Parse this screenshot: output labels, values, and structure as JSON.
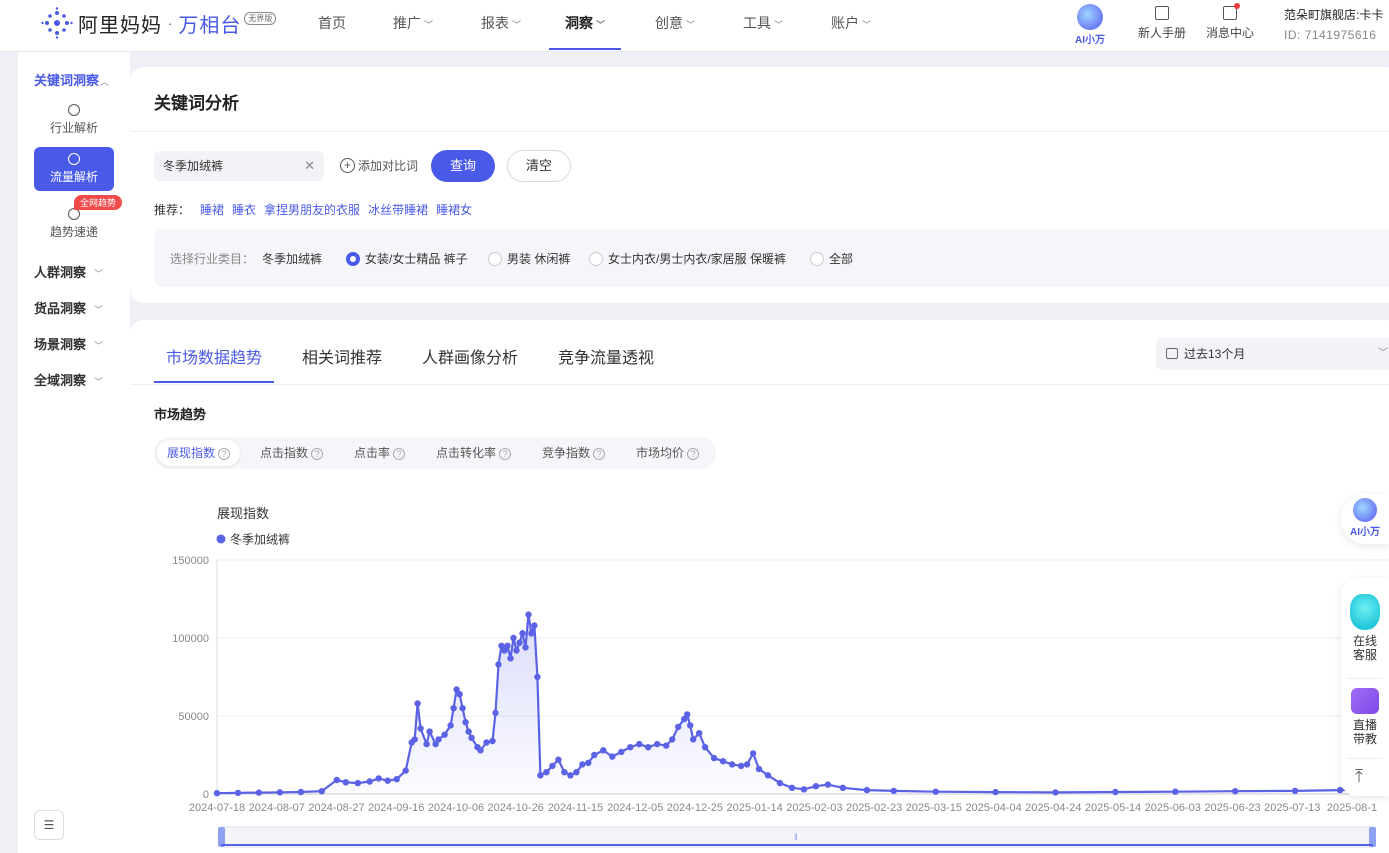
{
  "brand": {
    "name": "阿里妈妈",
    "dot": "·",
    "product": "万相台",
    "badge": "无界版"
  },
  "nav": [
    {
      "label": "首页",
      "dropdown": false,
      "active": false
    },
    {
      "label": "推广",
      "dropdown": true,
      "active": false
    },
    {
      "label": "报表",
      "dropdown": true,
      "active": false
    },
    {
      "label": "洞察",
      "dropdown": true,
      "active": true
    },
    {
      "label": "创意",
      "dropdown": true,
      "active": false
    },
    {
      "label": "工具",
      "dropdown": true,
      "active": false
    },
    {
      "label": "账户",
      "dropdown": true,
      "active": false
    }
  ],
  "header": {
    "ai_label": "AI小万",
    "manual_label": "新人手册",
    "messages_label": "消息中心",
    "shop_name": "范朵町旗舰店:卡卡",
    "shop_id": "ID: 7141975616"
  },
  "sidebar": {
    "keyword_section": "关键词洞察",
    "items": [
      {
        "label": "行业解析",
        "active": false
      },
      {
        "label": "流量解析",
        "active": true
      },
      {
        "label": "趋势速递",
        "active": false
      }
    ],
    "badge": "全网趋势",
    "sections": [
      "人群洞察",
      "货品洞察",
      "场景洞察",
      "全域洞察"
    ],
    "collapse_icon": "collapse-icon"
  },
  "keyword_panel": {
    "title": "关键词分析",
    "keyword_value": "冬季加绒裤",
    "add_compare_label": "添加对比词",
    "query_label": "查询",
    "clear_label": "清空",
    "rec_label": "推荐：",
    "recommendations": [
      "睡裙",
      "睡衣",
      "拿捏男朋友的衣服",
      "冰丝带睡裙",
      "睡裙女"
    ],
    "industry_label": "选择行业类目：",
    "industry_keyword": "冬季加绒裤",
    "industry_options": [
      {
        "label": "女装/女士精品 裤子",
        "selected": true
      },
      {
        "label": "男装 休闲裤",
        "selected": false
      },
      {
        "label": "女士内衣/男士内衣/家居服 保暖裤",
        "selected": false
      },
      {
        "label": "全部",
        "selected": false
      }
    ]
  },
  "analysis_panel": {
    "tabs": [
      {
        "label": "市场数据趋势",
        "active": true
      },
      {
        "label": "相关词推荐",
        "active": false
      },
      {
        "label": "人群画像分析",
        "active": false
      },
      {
        "label": "竞争流量透视",
        "active": false
      }
    ],
    "range_label": "过去13个月",
    "section_title": "市场趋势",
    "metrics": [
      {
        "label": "展现指数",
        "active": true
      },
      {
        "label": "点击指数",
        "active": false
      },
      {
        "label": "点击率",
        "active": false
      },
      {
        "label": "点击转化率",
        "active": false
      },
      {
        "label": "竞争指数",
        "active": false
      },
      {
        "label": "市场均价",
        "active": false
      }
    ]
  },
  "chart_data": {
    "type": "line",
    "title": "展现指数",
    "series": [
      {
        "name": "冬季加绒裤",
        "color": "#5b62e6"
      }
    ],
    "ylim": [
      0,
      150000
    ],
    "y_ticks": [
      0,
      50000,
      100000,
      150000
    ],
    "x_ticks": [
      "2024-07-18",
      "2024-08-07",
      "2024-08-27",
      "2024-09-16",
      "2024-10-06",
      "2024-10-26",
      "2024-11-15",
      "2024-12-05",
      "2024-12-25",
      "2025-01-14",
      "2025-02-03",
      "2025-02-23",
      "2025-03-15",
      "2025-04-04",
      "2025-04-24",
      "2025-05-14",
      "2025-06-03",
      "2025-06-23",
      "2025-07-13",
      "2025-08-1"
    ],
    "points": [
      [
        "2024-07-18",
        500
      ],
      [
        "2024-07-25",
        700
      ],
      [
        "2024-08-01",
        900
      ],
      [
        "2024-08-08",
        1100
      ],
      [
        "2024-08-15",
        1300
      ],
      [
        "2024-08-22",
        1800
      ],
      [
        "2024-08-27",
        9000
      ],
      [
        "2024-08-30",
        7500
      ],
      [
        "2024-09-03",
        7000
      ],
      [
        "2024-09-07",
        8000
      ],
      [
        "2024-09-10",
        10000
      ],
      [
        "2024-09-13",
        8500
      ],
      [
        "2024-09-16",
        9500
      ],
      [
        "2024-09-19",
        15000
      ],
      [
        "2024-09-21",
        33000
      ],
      [
        "2024-09-22",
        35000
      ],
      [
        "2024-09-23",
        58000
      ],
      [
        "2024-09-24",
        42000
      ],
      [
        "2024-09-26",
        32000
      ],
      [
        "2024-09-27",
        40000
      ],
      [
        "2024-09-29",
        32000
      ],
      [
        "2024-09-30",
        35000
      ],
      [
        "2024-10-02",
        38000
      ],
      [
        "2024-10-04",
        44000
      ],
      [
        "2024-10-05",
        55000
      ],
      [
        "2024-10-06",
        67000
      ],
      [
        "2024-10-07",
        64000
      ],
      [
        "2024-10-08",
        55000
      ],
      [
        "2024-10-09",
        46000
      ],
      [
        "2024-10-10",
        40000
      ],
      [
        "2024-10-11",
        36000
      ],
      [
        "2024-10-13",
        30000
      ],
      [
        "2024-10-14",
        28000
      ],
      [
        "2024-10-16",
        33000
      ],
      [
        "2024-10-18",
        34000
      ],
      [
        "2024-10-19",
        52000
      ],
      [
        "2024-10-20",
        83000
      ],
      [
        "2024-10-21",
        95000
      ],
      [
        "2024-10-22",
        92000
      ],
      [
        "2024-10-23",
        95000
      ],
      [
        "2024-10-24",
        87000
      ],
      [
        "2024-10-25",
        100000
      ],
      [
        "2024-10-26",
        92000
      ],
      [
        "2024-10-27",
        97000
      ],
      [
        "2024-10-28",
        103000
      ],
      [
        "2024-10-29",
        94000
      ],
      [
        "2024-10-30",
        115000
      ],
      [
        "2024-10-31",
        103000
      ],
      [
        "2024-11-01",
        108000
      ],
      [
        "2024-11-02",
        75000
      ],
      [
        "2024-11-03",
        12000
      ],
      [
        "2024-11-05",
        14000
      ],
      [
        "2024-11-07",
        18000
      ],
      [
        "2024-11-09",
        22000
      ],
      [
        "2024-11-11",
        14000
      ],
      [
        "2024-11-13",
        12000
      ],
      [
        "2024-11-15",
        14000
      ],
      [
        "2024-11-17",
        19000
      ],
      [
        "2024-11-19",
        20000
      ],
      [
        "2024-11-21",
        25000
      ],
      [
        "2024-11-24",
        28000
      ],
      [
        "2024-11-27",
        24000
      ],
      [
        "2024-11-30",
        27000
      ],
      [
        "2024-12-03",
        30000
      ],
      [
        "2024-12-06",
        32000
      ],
      [
        "2024-12-09",
        30000
      ],
      [
        "2024-12-12",
        32000
      ],
      [
        "2024-12-15",
        31000
      ],
      [
        "2024-12-17",
        35000
      ],
      [
        "2024-12-19",
        43000
      ],
      [
        "2024-12-21",
        48000
      ],
      [
        "2024-12-22",
        51000
      ],
      [
        "2024-12-23",
        44000
      ],
      [
        "2024-12-24",
        35000
      ],
      [
        "2024-12-26",
        39000
      ],
      [
        "2024-12-28",
        30000
      ],
      [
        "2024-12-31",
        23000
      ],
      [
        "2025-01-03",
        21000
      ],
      [
        "2025-01-06",
        19000
      ],
      [
        "2025-01-09",
        18000
      ],
      [
        "2025-01-11",
        19000
      ],
      [
        "2025-01-13",
        26000
      ],
      [
        "2025-01-15",
        16000
      ],
      [
        "2025-01-18",
        12000
      ],
      [
        "2025-01-22",
        7000
      ],
      [
        "2025-01-26",
        4000
      ],
      [
        "2025-01-30",
        3000
      ],
      [
        "2025-02-03",
        5000
      ],
      [
        "2025-02-07",
        6000
      ],
      [
        "2025-02-12",
        4000
      ],
      [
        "2025-02-20",
        2500
      ],
      [
        "2025-03-01",
        2000
      ],
      [
        "2025-03-15",
        1500
      ],
      [
        "2025-04-04",
        1200
      ],
      [
        "2025-04-24",
        1000
      ],
      [
        "2025-05-14",
        1300
      ],
      [
        "2025-06-03",
        1500
      ],
      [
        "2025-06-23",
        1800
      ],
      [
        "2025-07-13",
        2000
      ],
      [
        "2025-07-28",
        2500
      ],
      [
        "2025-08-01",
        3000
      ]
    ]
  },
  "float": {
    "ai_label": "AI小万",
    "service_label": "在线\n客服",
    "live_label": "直播\n带教"
  }
}
